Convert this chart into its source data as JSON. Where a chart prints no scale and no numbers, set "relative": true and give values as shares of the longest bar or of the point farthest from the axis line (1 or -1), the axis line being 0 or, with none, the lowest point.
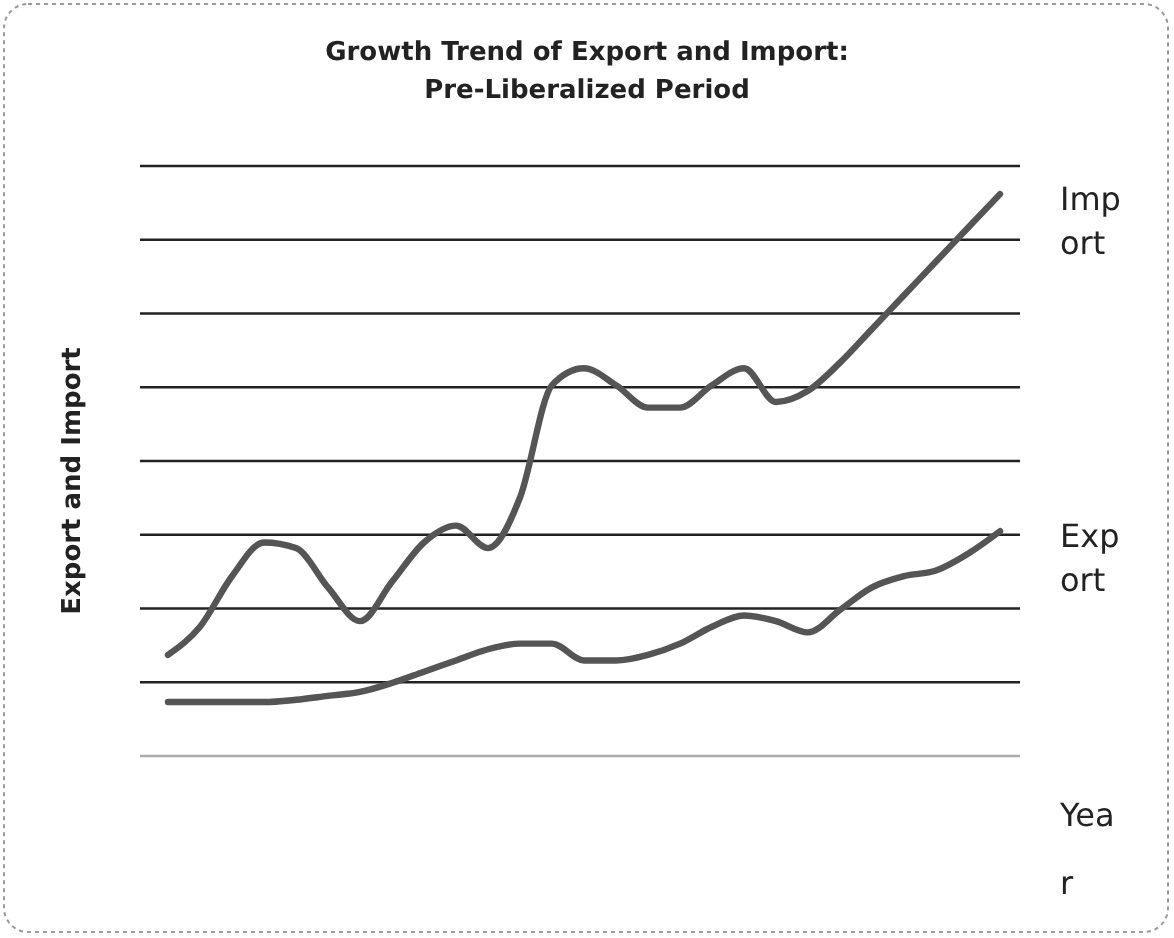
{
  "chart_data": {
    "type": "line",
    "title": "Growth Trend of Export and Import: Pre-Liberalized Period",
    "xlabel": "Year",
    "ylabel": "Export and Import",
    "relative": true,
    "grid": true,
    "line_style": "solid",
    "categories": [
      null,
      null,
      null,
      null,
      null,
      null,
      null,
      null,
      null,
      null,
      null,
      null,
      null,
      null,
      null,
      null,
      null,
      null,
      null,
      null,
      null,
      null,
      null,
      null,
      null,
      null,
      null
    ],
    "series": [
      {
        "name": "Import",
        "color": "#555555",
        "values": [
          0.18,
          0.23,
          0.32,
          0.38,
          0.37,
          0.3,
          0.24,
          0.31,
          0.38,
          0.41,
          0.37,
          0.46,
          0.66,
          0.69,
          0.66,
          0.62,
          0.62,
          0.66,
          0.69,
          0.63,
          0.65,
          0.7,
          0.76,
          0.82,
          0.88,
          0.94,
          1
        ]
      },
      {
        "name": "Export",
        "color": "#555555",
        "values": [
          0.096,
          0.096,
          0.096,
          0.096,
          0.1,
          0.107,
          0.114,
          0.13,
          0.15,
          0.17,
          0.19,
          0.2,
          0.2,
          0.17,
          0.17,
          0.18,
          0.2,
          0.23,
          0.25,
          0.24,
          0.22,
          0.26,
          0.3,
          0.32,
          0.33,
          0.36,
          0.4
        ]
      }
    ]
  }
}
